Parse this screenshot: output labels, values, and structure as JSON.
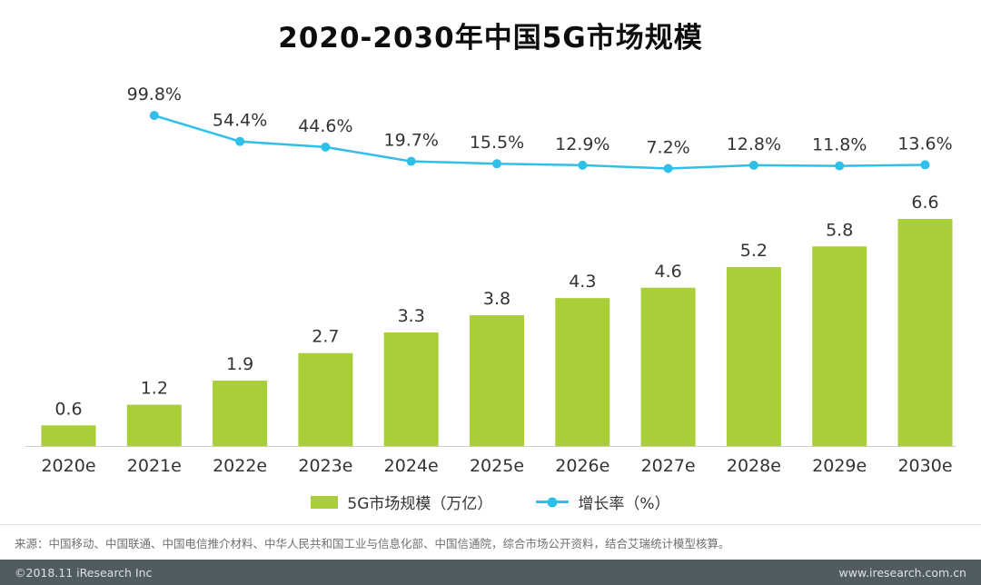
{
  "title": "2020-2030年中国5G市场规模",
  "chart_data": {
    "type": "bar+line",
    "title": "2020-2030年中国5G市场规模",
    "categories": [
      "2020e",
      "2021e",
      "2022e",
      "2023e",
      "2024e",
      "2025e",
      "2026e",
      "2027e",
      "2028e",
      "2029e",
      "2030e"
    ],
    "series": [
      {
        "name": "5G市场规模（万亿）",
        "type": "bar",
        "unit": "万亿",
        "color": "#a8ce38",
        "values": [
          0.6,
          1.2,
          1.9,
          2.7,
          3.3,
          3.8,
          4.3,
          4.6,
          5.2,
          5.8,
          6.6
        ]
      },
      {
        "name": "增长率（%）",
        "type": "line",
        "unit": "%",
        "color": "#2fbfe9",
        "values": [
          null,
          99.8,
          54.4,
          44.6,
          19.7,
          15.5,
          12.9,
          7.2,
          12.8,
          11.8,
          13.6
        ]
      }
    ],
    "ylim_bar": [
      0,
      7
    ],
    "ylim_line": [
      0,
      110
    ],
    "grid": false,
    "legend_position": "bottom",
    "data_labels": true
  },
  "legend": {
    "items": [
      {
        "label": "5G市场规模（万亿）",
        "color": "#a8ce38",
        "marker": "square"
      },
      {
        "label": "增长率（%）",
        "color": "#2fbfe9",
        "marker": "line-dot"
      }
    ]
  },
  "source": "来源：中国移动、中国联通、中国电信推介材料、中华人民共和国工业与信息化部、中国信通院，综合市场公开资料，结合艾瑞统计模型核算。",
  "footer": {
    "left": "©2018.11 iResearch Inc",
    "right": "www.iresearch.com.cn"
  }
}
